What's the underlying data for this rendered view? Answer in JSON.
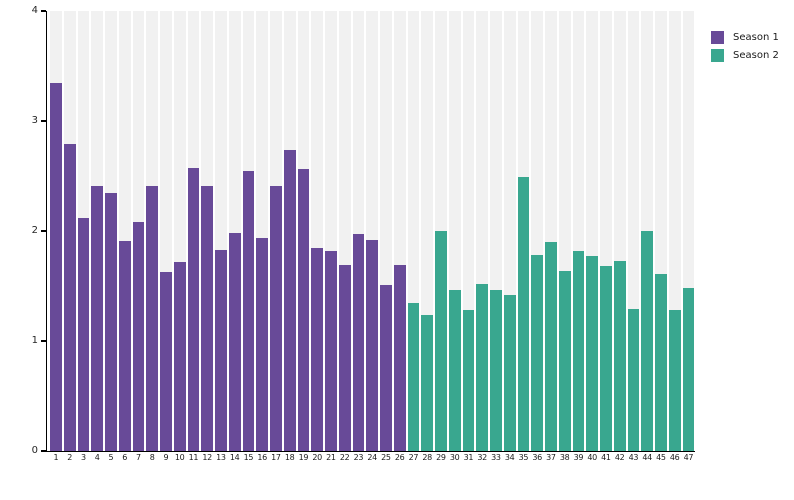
{
  "chart_data": {
    "type": "bar",
    "title": "",
    "xlabel": "",
    "ylabel": "",
    "ylim": [
      0,
      4
    ],
    "yticks": [
      0,
      1,
      2,
      3,
      4
    ],
    "grid": false,
    "plot_band_color": "#f1f1f1",
    "axis_color": "#000000",
    "tick_label_color": "#262626",
    "legend_position": "top-right",
    "categories": [
      1,
      2,
      3,
      4,
      5,
      6,
      7,
      8,
      9,
      10,
      11,
      12,
      13,
      14,
      15,
      16,
      17,
      18,
      19,
      20,
      21,
      22,
      23,
      24,
      25,
      26,
      27,
      28,
      29,
      30,
      31,
      32,
      33,
      34,
      35,
      36,
      37,
      38,
      39,
      40,
      41,
      42,
      43,
      44,
      45,
      46,
      47
    ],
    "series": [
      {
        "name": "Season 1",
        "color": "#684a98",
        "x_start": 1,
        "x_end": 26,
        "values": [
          3.35,
          2.79,
          2.12,
          2.41,
          2.35,
          1.91,
          2.08,
          2.41,
          1.63,
          1.72,
          2.57,
          2.41,
          1.83,
          1.98,
          2.55,
          1.94,
          2.41,
          2.74,
          2.56,
          1.85,
          1.82,
          1.69,
          1.97,
          1.92,
          1.51,
          1.69
        ]
      },
      {
        "name": "Season 2",
        "color": "#39a78f",
        "x_start": 27,
        "x_end": 47,
        "values": [
          1.35,
          1.24,
          2.0,
          1.46,
          1.28,
          1.52,
          1.46,
          1.42,
          2.49,
          1.78,
          1.9,
          1.64,
          1.82,
          1.77,
          1.68,
          1.73,
          1.29,
          2.0,
          1.61,
          1.28,
          1.48
        ]
      }
    ]
  }
}
